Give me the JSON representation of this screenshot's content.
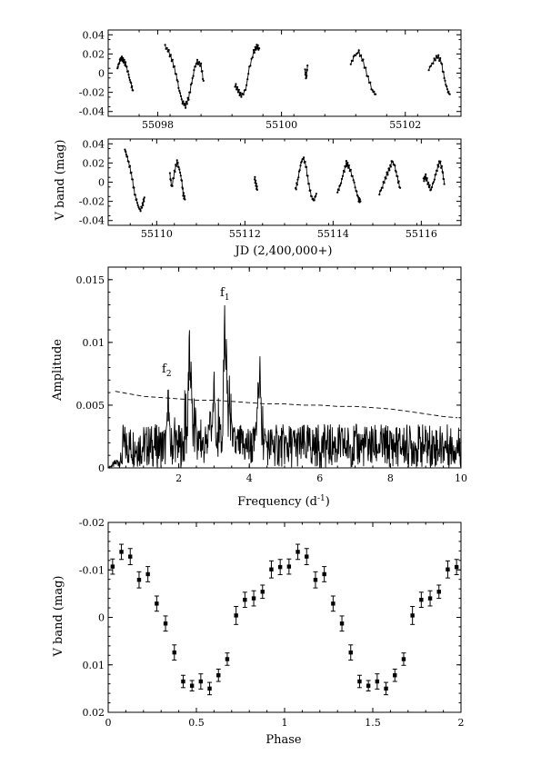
{
  "figure": {
    "shared_ylabel_top": "V band (mag)",
    "panels_note": ""
  },
  "chart_data": [
    {
      "type": "scatter",
      "id": "lc1",
      "xlabel": "",
      "ylabel": "",
      "xlim": [
        55097.2,
        55102.9
      ],
      "ylim": [
        -0.045,
        0.045
      ],
      "xticks": [
        55098,
        55100,
        55102
      ],
      "yticks": [
        -0.04,
        -0.02,
        0,
        0.02,
        0.04
      ],
      "ytick_labels": [
        "-0.04",
        "-0.02",
        "0",
        "0.02",
        "0.04"
      ],
      "segments": [
        [
          [
            55097.35,
            0.005
          ],
          [
            55097.38,
            0.012
          ],
          [
            55097.41,
            0.016
          ],
          [
            55097.45,
            0.013
          ],
          [
            55097.49,
            0.008
          ],
          [
            55097.53,
            -0.002
          ],
          [
            55097.57,
            -0.012
          ],
          [
            55097.6,
            -0.018
          ]
        ],
        [
          [
            55098.12,
            0.028
          ],
          [
            55098.18,
            0.022
          ],
          [
            55098.24,
            0.012
          ],
          [
            55098.3,
            -0.002
          ],
          [
            55098.35,
            -0.018
          ],
          [
            55098.4,
            -0.03
          ],
          [
            55098.45,
            -0.034
          ],
          [
            55098.5,
            -0.026
          ],
          [
            55098.55,
            -0.01
          ],
          [
            55098.6,
            0.006
          ],
          [
            55098.64,
            0.012
          ],
          [
            55098.7,
            0.008
          ],
          [
            55098.74,
            -0.008
          ]
        ],
        [
          [
            55099.25,
            -0.012
          ],
          [
            55099.3,
            -0.018
          ],
          [
            55099.35,
            -0.024
          ],
          [
            55099.42,
            -0.018
          ],
          [
            55099.48,
            0.005
          ],
          [
            55099.55,
            0.022
          ],
          [
            55099.6,
            0.028
          ],
          [
            55099.64,
            0.026
          ]
        ],
        [
          [
            55100.38,
            0.002
          ],
          [
            55100.4,
            -0.005
          ],
          [
            55100.42,
            0.008
          ]
        ],
        [
          [
            55101.12,
            0.01
          ],
          [
            55101.18,
            0.018
          ],
          [
            55101.25,
            0.022
          ],
          [
            55101.32,
            0.012
          ],
          [
            55101.4,
            -0.005
          ],
          [
            55101.47,
            -0.018
          ],
          [
            55101.52,
            -0.022
          ]
        ],
        [
          [
            55102.38,
            0.004
          ],
          [
            55102.45,
            0.012
          ],
          [
            55102.52,
            0.018
          ],
          [
            55102.58,
            0.012
          ],
          [
            55102.63,
            -0.005
          ],
          [
            55102.68,
            -0.018
          ],
          [
            55102.72,
            -0.022
          ]
        ]
      ]
    },
    {
      "type": "scatter",
      "id": "lc2",
      "xlabel": "JD  (2,400,000+)",
      "ylabel": "",
      "xlim": [
        55108.9,
        55116.9
      ],
      "ylim": [
        -0.045,
        0.045
      ],
      "xticks": [
        55110,
        55112,
        55114,
        55116
      ],
      "yticks": [
        -0.04,
        -0.02,
        0,
        0.02,
        0.04
      ],
      "ytick_labels": [
        "-0.04",
        "-0.02",
        "0",
        "0.02",
        "0.04"
      ],
      "segments": [
        [
          [
            55109.28,
            0.034
          ],
          [
            55109.32,
            0.028
          ],
          [
            55109.38,
            0.018
          ],
          [
            55109.44,
            0.005
          ],
          [
            55109.5,
            -0.012
          ],
          [
            55109.56,
            -0.022
          ],
          [
            55109.62,
            -0.03
          ],
          [
            55109.68,
            -0.024
          ],
          [
            55109.72,
            -0.016
          ]
        ],
        [
          [
            55110.3,
            0.008
          ],
          [
            55110.34,
            -0.006
          ],
          [
            55110.4,
            0.01
          ],
          [
            55110.46,
            0.022
          ],
          [
            55110.5,
            0.016
          ],
          [
            55110.56,
            0.004
          ],
          [
            55110.6,
            -0.012
          ],
          [
            55110.64,
            -0.018
          ]
        ],
        [
          [
            55112.22,
            0.005
          ],
          [
            55112.25,
            -0.002
          ],
          [
            55112.28,
            -0.008
          ]
        ],
        [
          [
            55113.15,
            -0.008
          ],
          [
            55113.2,
            0.002
          ],
          [
            55113.26,
            0.018
          ],
          [
            55113.32,
            0.026
          ],
          [
            55113.38,
            0.018
          ],
          [
            55113.44,
            0.0
          ],
          [
            55113.5,
            -0.014
          ],
          [
            55113.56,
            -0.02
          ],
          [
            55113.62,
            -0.012
          ]
        ],
        [
          [
            55114.1,
            -0.01
          ],
          [
            55114.16,
            -0.004
          ],
          [
            55114.24,
            0.01
          ],
          [
            55114.3,
            0.02
          ],
          [
            55114.36,
            0.016
          ],
          [
            55114.44,
            0.006
          ],
          [
            55114.52,
            -0.008
          ],
          [
            55114.58,
            -0.018
          ],
          [
            55114.62,
            -0.02
          ]
        ],
        [
          [
            55115.05,
            -0.012
          ],
          [
            55115.12,
            -0.004
          ],
          [
            55115.2,
            0.006
          ],
          [
            55115.28,
            0.014
          ],
          [
            55115.34,
            0.022
          ],
          [
            55115.4,
            0.016
          ],
          [
            55115.46,
            0.004
          ],
          [
            55115.52,
            -0.006
          ]
        ],
        [
          [
            55116.05,
            0.002
          ],
          [
            55116.1,
            0.006
          ],
          [
            55116.16,
            -0.002
          ],
          [
            55116.22,
            -0.008
          ],
          [
            55116.3,
            0.004
          ],
          [
            55116.36,
            0.014
          ],
          [
            55116.42,
            0.022
          ],
          [
            55116.48,
            0.012
          ],
          [
            55116.52,
            -0.002
          ]
        ]
      ]
    },
    {
      "type": "line",
      "id": "periodogram",
      "xlabel": "Frequency (d",
      "xlabel_sup": "-1",
      "xlabel_close": ")",
      "ylabel": "Amplitude",
      "xlim": [
        0,
        10
      ],
      "ylim": [
        0,
        0.016
      ],
      "xticks": [
        2,
        4,
        6,
        8,
        10
      ],
      "yticks": [
        0,
        0.005,
        0.01,
        0.015
      ],
      "ytick_labels": [
        "0",
        "0.005",
        "0.01",
        "0.015"
      ],
      "annotations": [
        {
          "base": "f",
          "sub": "1",
          "x": 3.3,
          "y": 0.0134
        },
        {
          "base": "f",
          "sub": "2",
          "x": 1.75,
          "y": 0.0074
        }
      ],
      "noise_threshold": {
        "style": "dashed",
        "x": [
          0.2,
          0.6,
          1.0,
          1.5,
          2.0,
          2.5,
          3.0,
          3.5,
          4.0,
          4.5,
          5.0,
          5.5,
          6.0,
          6.5,
          7.0,
          7.5,
          8.0,
          8.5,
          9.0,
          9.5,
          9.9
        ],
        "y": [
          0.0061,
          0.0059,
          0.0057,
          0.0056,
          0.0055,
          0.0054,
          0.0054,
          0.0053,
          0.0052,
          0.0051,
          0.0051,
          0.005,
          0.005,
          0.0049,
          0.0049,
          0.0048,
          0.0047,
          0.0045,
          0.0043,
          0.0041,
          0.004
        ]
      },
      "peaks": [
        {
          "x": 1.7,
          "y": 0.0066
        },
        {
          "x": 2.3,
          "y": 0.0114
        },
        {
          "x": 2.35,
          "y": 0.0085
        },
        {
          "x": 3.0,
          "y": 0.0078
        },
        {
          "x": 3.3,
          "y": 0.0131
        },
        {
          "x": 3.35,
          "y": 0.0105
        },
        {
          "x": 4.3,
          "y": 0.0089
        },
        {
          "x": 4.25,
          "y": 0.0072
        }
      ],
      "background_max": 0.0035
    },
    {
      "type": "scatter",
      "id": "phase",
      "xlabel": "Phase",
      "ylabel": "V band (mag)",
      "xlim": [
        0,
        2
      ],
      "ylim": [
        0.02,
        -0.02
      ],
      "inverted_y": true,
      "xticks": [
        0,
        0.5,
        1,
        1.5,
        2
      ],
      "xtick_labels": [
        "0",
        "0.5",
        "1",
        "1.5",
        "2"
      ],
      "yticks": [
        -0.02,
        -0.01,
        0,
        0.01,
        0.02
      ],
      "ytick_labels": [
        "-0.02",
        "-0.01",
        "0",
        "0.01",
        "0.02"
      ],
      "x": [
        0.025,
        0.075,
        0.125,
        0.175,
        0.225,
        0.275,
        0.325,
        0.375,
        0.425,
        0.475,
        0.525,
        0.575,
        0.625,
        0.675,
        0.725,
        0.775,
        0.825,
        0.875,
        0.925,
        0.975
      ],
      "y": [
        -0.0107,
        -0.0138,
        -0.0128,
        -0.0079,
        -0.0091,
        -0.0029,
        0.0013,
        0.0074,
        0.0135,
        0.0144,
        0.0135,
        0.015,
        0.0122,
        0.0088,
        -0.0004,
        -0.0037,
        -0.004,
        -0.0054,
        -0.0101,
        -0.0106
      ],
      "err": [
        0.0016,
        0.0016,
        0.0017,
        0.0017,
        0.0016,
        0.0016,
        0.0016,
        0.0016,
        0.0013,
        0.0011,
        0.0016,
        0.0013,
        0.0013,
        0.0013,
        0.0019,
        0.0016,
        0.0016,
        0.0014,
        0.0018,
        0.0016
      ],
      "repeat_period": 1
    }
  ]
}
